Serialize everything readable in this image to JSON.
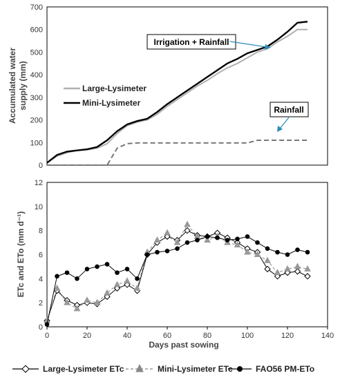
{
  "chart_data": [
    {
      "type": "line",
      "x": [
        0,
        5,
        10,
        15,
        20,
        25,
        30,
        35,
        40,
        45,
        50,
        55,
        60,
        65,
        70,
        75,
        80,
        85,
        90,
        95,
        100,
        105,
        110,
        115,
        120,
        125,
        130
      ],
      "series": [
        {
          "name": "Large-Lysimeter",
          "color": "#b0b0b0",
          "dash": "solid",
          "values": [
            10,
            40,
            55,
            65,
            68,
            75,
            95,
            140,
            175,
            190,
            200,
            225,
            260,
            290,
            320,
            350,
            375,
            405,
            430,
            450,
            475,
            500,
            515,
            545,
            570,
            600,
            600
          ]
        },
        {
          "name": "Mini-Lysimeter",
          "color": "#000000",
          "dash": "solid",
          "values": [
            10,
            45,
            60,
            65,
            70,
            80,
            110,
            150,
            180,
            195,
            205,
            235,
            270,
            300,
            330,
            360,
            390,
            420,
            450,
            470,
            495,
            510,
            525,
            555,
            590,
            630,
            635
          ]
        },
        {
          "name": "Rainfall",
          "color": "#777777",
          "dash": "dashed",
          "values": [
            0,
            0,
            0,
            0,
            0,
            0,
            0,
            75,
            95,
            98,
            98,
            98,
            98,
            98,
            98,
            98,
            98,
            98,
            98,
            98,
            98,
            110,
            110,
            110,
            110,
            110,
            110
          ]
        }
      ],
      "xlim": [
        0,
        140
      ],
      "ylim": [
        0,
        700
      ],
      "yticks": [
        "0",
        "100",
        "200",
        "300",
        "400",
        "500",
        "600",
        "700"
      ],
      "ylabel_line1": "Accumulated water",
      "ylabel_line2": "supply (mm)",
      "annotations": [
        "Irrigation + Rainfall",
        "Rainfall"
      ],
      "legend_position": "left-middle"
    },
    {
      "type": "line",
      "x": [
        0,
        5,
        10,
        15,
        20,
        25,
        30,
        35,
        40,
        45,
        50,
        55,
        60,
        65,
        70,
        75,
        80,
        85,
        90,
        95,
        100,
        105,
        110,
        115,
        120,
        125,
        130
      ],
      "series": [
        {
          "name": "Large-Lysimeter ETc",
          "marker": "diamond",
          "color": "#000000",
          "values": [
            0.5,
            3.0,
            2.2,
            1.8,
            2.0,
            1.9,
            2.5,
            3.2,
            3.5,
            3.0,
            6.0,
            7.0,
            7.5,
            7.2,
            8.0,
            7.6,
            7.5,
            7.8,
            7.4,
            7.0,
            6.5,
            6.2,
            4.8,
            4.2,
            4.5,
            4.6,
            4.2
          ]
        },
        {
          "name": "Mini-Lysimeter ETc",
          "marker": "triangle",
          "color": "#888888",
          "values": [
            0.5,
            3.2,
            2.0,
            1.5,
            2.2,
            2.0,
            2.8,
            3.5,
            3.8,
            3.2,
            6.2,
            7.2,
            7.8,
            7.0,
            8.5,
            7.5,
            7.2,
            7.5,
            7.0,
            6.8,
            6.2,
            6.0,
            5.5,
            4.5,
            4.8,
            5.0,
            4.8
          ]
        },
        {
          "name": "FAO56 PM-ETo",
          "marker": "circle",
          "color": "#000000",
          "values": [
            0.2,
            4.2,
            4.5,
            4.0,
            4.8,
            5.0,
            5.2,
            4.5,
            4.8,
            4.0,
            6.0,
            6.2,
            6.3,
            6.5,
            7.0,
            7.2,
            7.5,
            7.4,
            7.2,
            7.3,
            7.5,
            7.0,
            6.5,
            6.2,
            6.0,
            6.4,
            6.2
          ]
        }
      ],
      "xlim": [
        0,
        140
      ],
      "ylim": [
        0,
        12
      ],
      "xticks": [
        "0",
        "20",
        "40",
        "60",
        "80",
        "100",
        "120",
        "140"
      ],
      "yticks": [
        "0",
        "2",
        "4",
        "6",
        "8",
        "10",
        "12"
      ],
      "xlabel": "Days past sowing",
      "ylabel": "ETc and ETo (mm d⁻¹)",
      "legend_position": "bottom"
    }
  ]
}
